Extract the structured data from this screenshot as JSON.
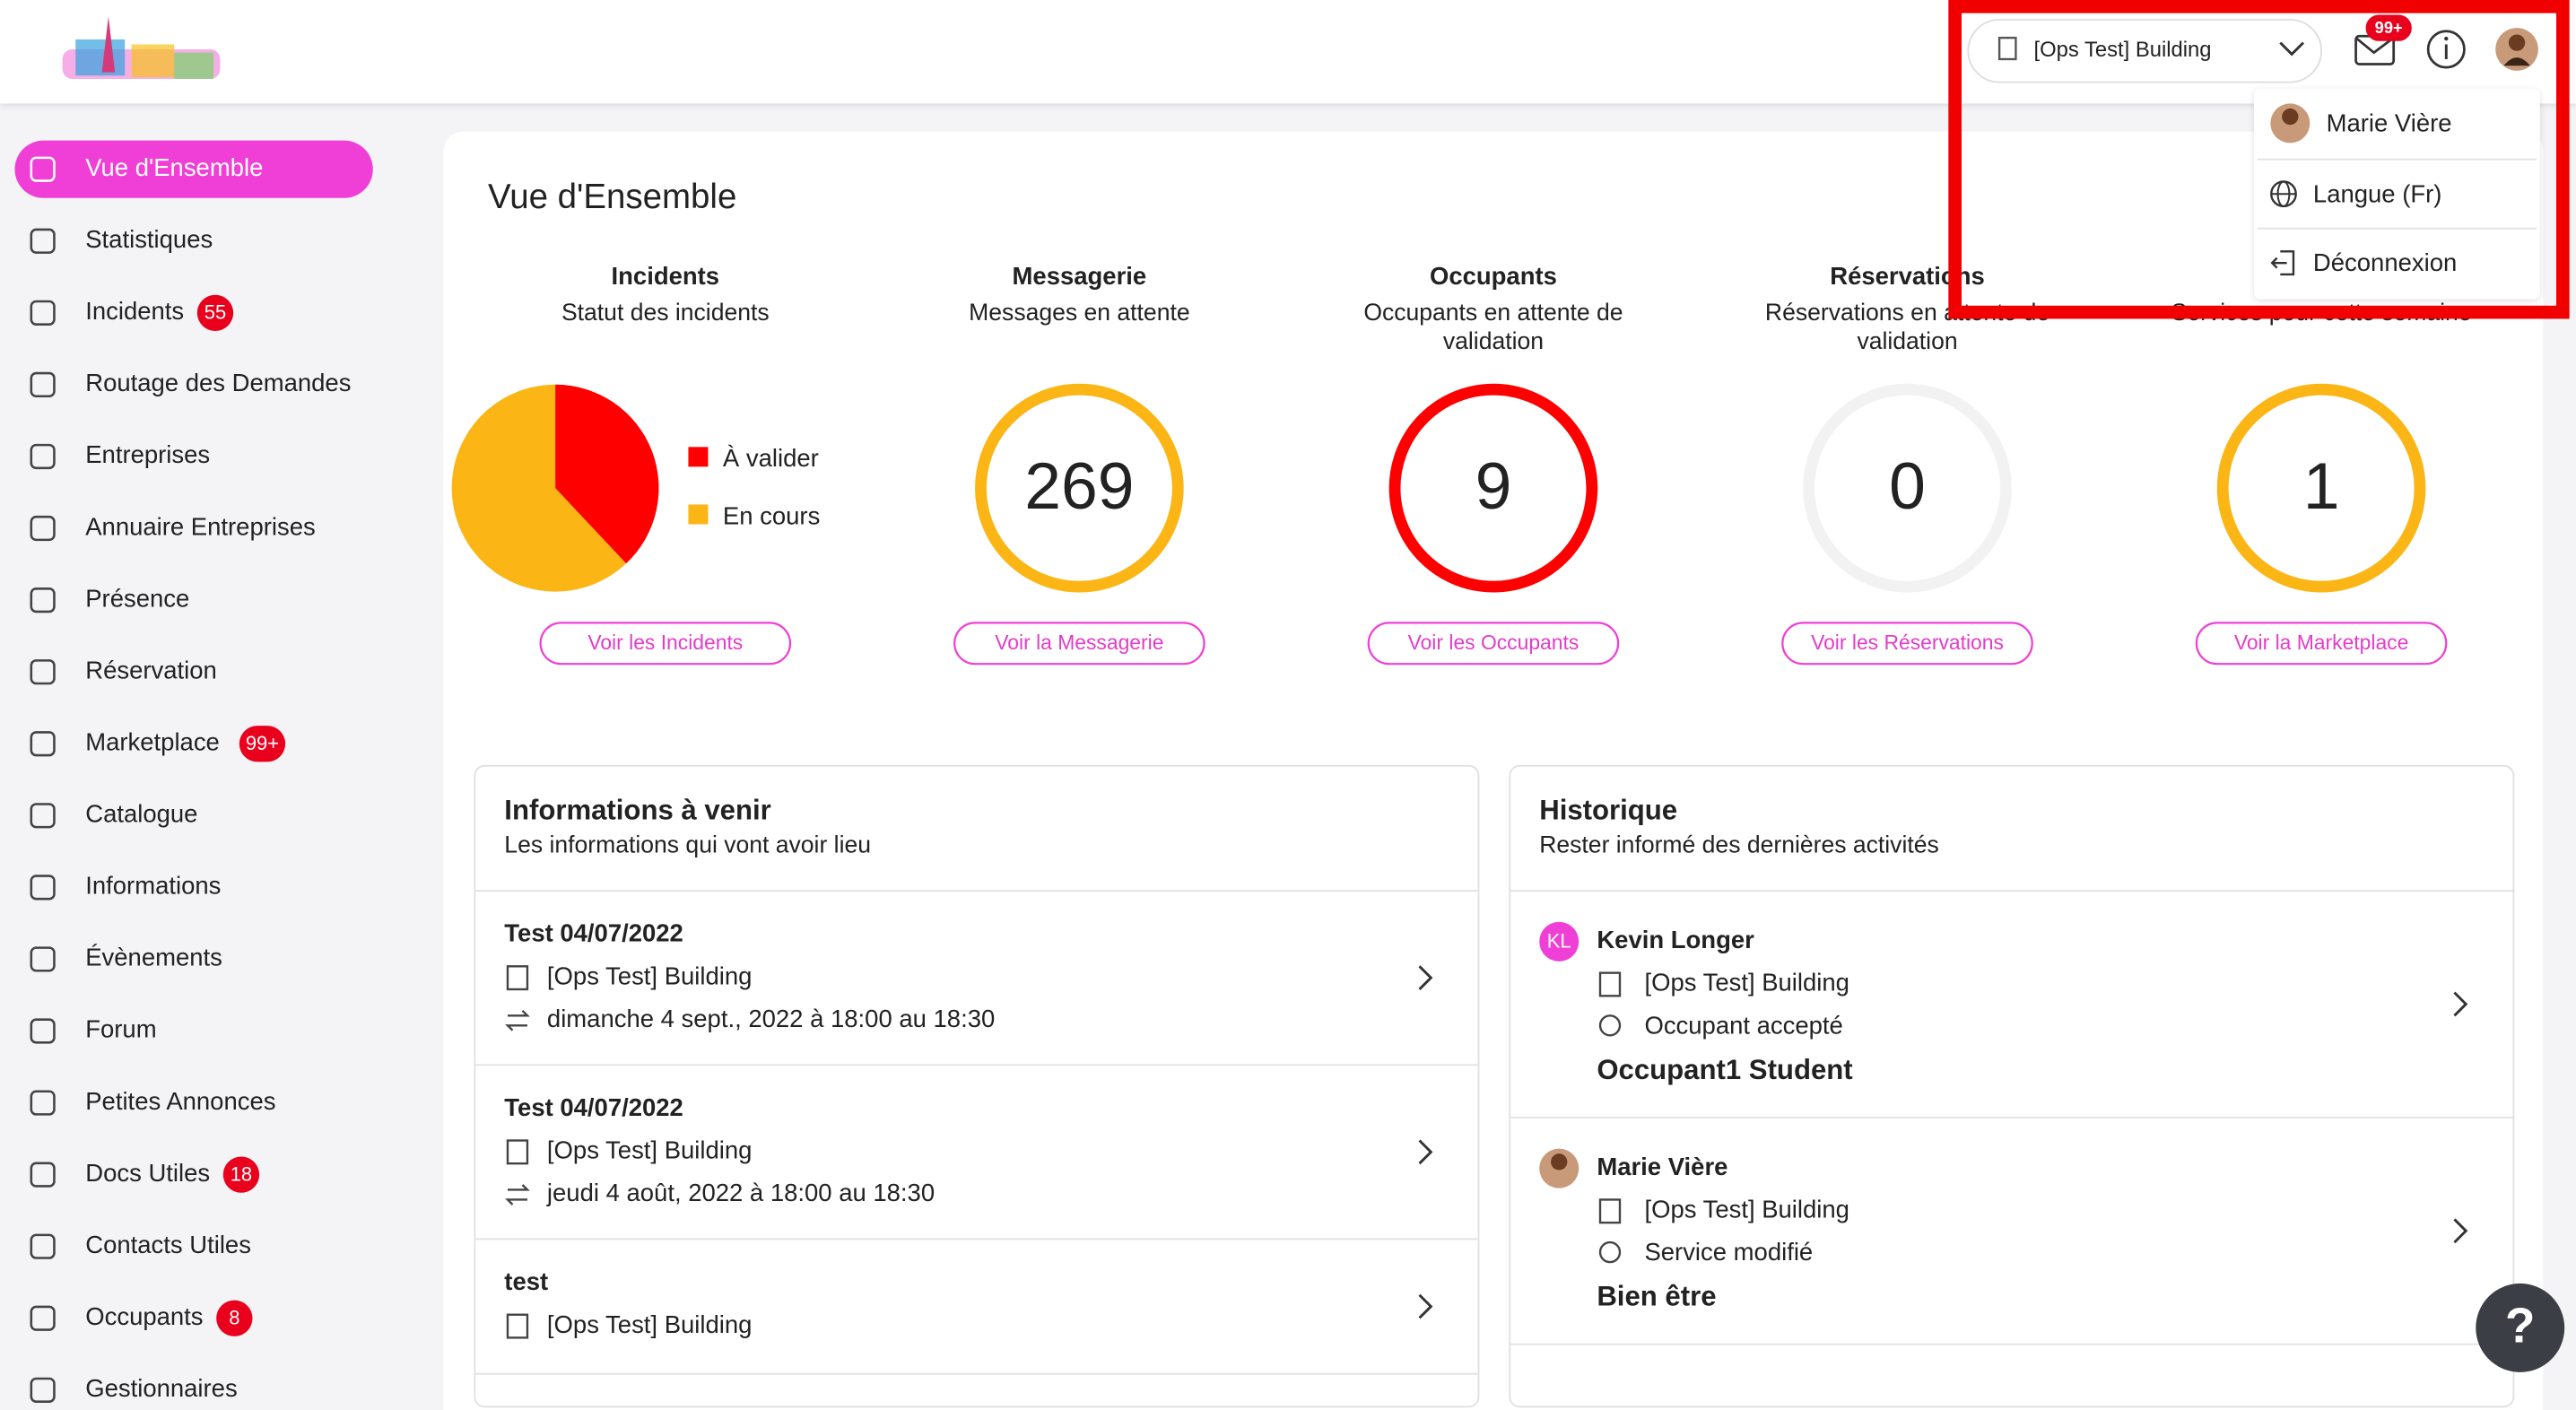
{
  "header": {
    "building": "[Ops Test] Building",
    "mail_badge": "99+"
  },
  "user_menu": {
    "items": [
      "Marie Vière",
      "Langue (Fr)",
      "Déconnexion"
    ]
  },
  "sidebar": {
    "items": [
      {
        "label": "Vue d'Ensemble"
      },
      {
        "label": "Statistiques"
      },
      {
        "label": "Incidents",
        "badge": 55
      },
      {
        "label": "Routage des Demandes"
      },
      {
        "label": "Entreprises"
      },
      {
        "label": "Annuaire Entreprises"
      },
      {
        "label": "Présence"
      },
      {
        "label": "Réservation"
      },
      {
        "label": "Marketplace",
        "badge": "99+"
      },
      {
        "label": "Catalogue"
      },
      {
        "label": "Informations"
      },
      {
        "label": "Évènements"
      },
      {
        "label": "Forum"
      },
      {
        "label": "Petites Annonces"
      },
      {
        "label": "Docs Utiles",
        "badge": 18
      },
      {
        "label": "Contacts Utiles"
      },
      {
        "label": "Occupants",
        "badge": 8
      },
      {
        "label": "Gestionnaires"
      }
    ]
  },
  "page": {
    "title": "Vue d'Ensemble"
  },
  "stats": [
    {
      "title": "Incidents",
      "subtitle": [
        "Statut des incidents"
      ],
      "button": "Voir les Incidents"
    },
    {
      "title": "Messagerie",
      "subtitle": [
        "Messages en attente"
      ],
      "value": 269,
      "color": "#fbb515",
      "button": "Voir la Messagerie"
    },
    {
      "title": "Occupants",
      "subtitle": [
        "Occupants en attente de",
        "validation"
      ],
      "value": 9,
      "color": "#fe0000",
      "button": "Voir les Occupants"
    },
    {
      "title": "Réservations",
      "subtitle": [
        "Réservations en attente de",
        "validation"
      ],
      "value": 0,
      "color": "#f2f2f2",
      "button": "Voir les Réservations"
    },
    {
      "subtitle": [
        "Services pour cette semaine"
      ],
      "value": 1,
      "color": "#fbb515",
      "button": "Voir la Marketplace"
    }
  ],
  "incidents_chart": {
    "type": "pie",
    "categories": [
      "À valider",
      "En cours"
    ],
    "values": [
      38,
      62
    ],
    "colors": [
      "#fe0000",
      "#fbb515"
    ]
  },
  "upcoming": {
    "title": "Informations à venir",
    "subtitle": "Les informations qui vont avoir lieu",
    "items": [
      {
        "title": "Test 04/07/2022",
        "building": "[Ops Test] Building",
        "date": "dimanche 4 sept., 2022 à 18:00 au 18:30"
      },
      {
        "title": "Test 04/07/2022",
        "building": "[Ops Test] Building",
        "date": "jeudi 4 août, 2022 à 18:00 au 18:30"
      },
      {
        "title": "test",
        "building": "[Ops Test] Building"
      }
    ]
  },
  "history": {
    "title": "Historique",
    "subtitle": "Rester informé des dernières activités",
    "items": [
      {
        "initials": "KL",
        "name": "Kevin Longer",
        "building": "[Ops Test] Building",
        "action": "Occupant accepté",
        "target": "Occupant1 Student"
      },
      {
        "name": "Marie Vière",
        "building": "[Ops Test] Building",
        "action": "Service modifié",
        "target": "Bien être"
      }
    ]
  }
}
